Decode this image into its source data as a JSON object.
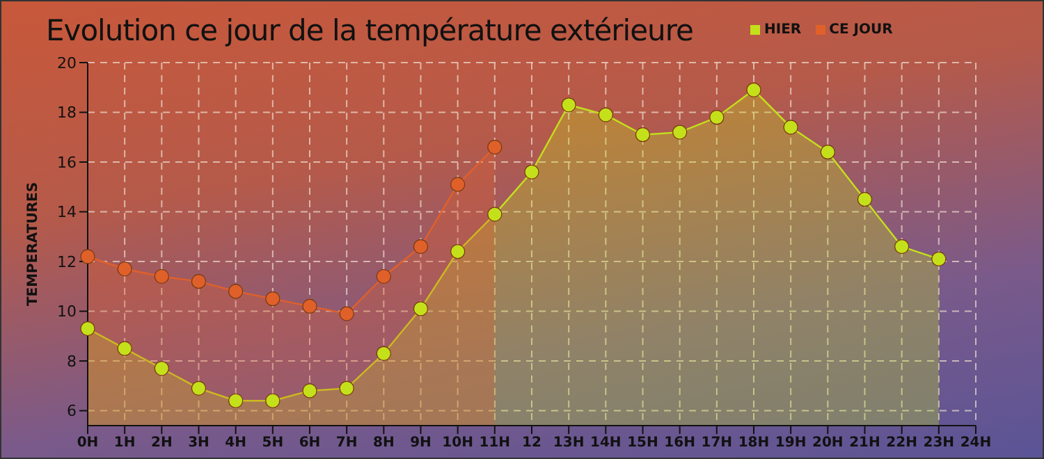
{
  "chart_data": {
    "type": "area",
    "title": "Evolution ce jour de la température extérieure",
    "ylabel": "TEMPERATURES",
    "categories": [
      "0H",
      "1H",
      "2H",
      "3H",
      "4H",
      "5H",
      "6H",
      "7H",
      "8H",
      "9H",
      "10H",
      "11H",
      "12",
      "13H",
      "14H",
      "15H",
      "16H",
      "17H",
      "18H",
      "19H",
      "20H",
      "21H",
      "22H",
      "23H",
      "24H"
    ],
    "series": [
      {
        "name": "HIER",
        "color": "#c4e01a",
        "values": [
          9.3,
          8.5,
          7.7,
          6.9,
          6.4,
          6.4,
          6.8,
          6.9,
          8.3,
          10.1,
          12.4,
          13.9,
          15.6,
          18.3,
          17.9,
          17.1,
          17.2,
          17.8,
          18.9,
          17.4,
          16.4,
          14.5,
          12.6,
          12.1,
          null
        ]
      },
      {
        "name": "CE JOUR",
        "color": "#e0602a",
        "values": [
          12.2,
          11.7,
          11.4,
          11.2,
          10.8,
          10.5,
          10.2,
          9.9,
          11.4,
          12.6,
          15.1,
          16.6,
          null,
          null,
          null,
          null,
          null,
          null,
          null,
          null,
          null,
          null,
          null,
          null,
          null
        ]
      }
    ],
    "ylim": [
      5.4,
      20
    ],
    "yticks": [
      6,
      8,
      10,
      12,
      14,
      16,
      18,
      20
    ],
    "grid": true,
    "legend": "top right",
    "marker": "circle",
    "line_style": "solid"
  }
}
